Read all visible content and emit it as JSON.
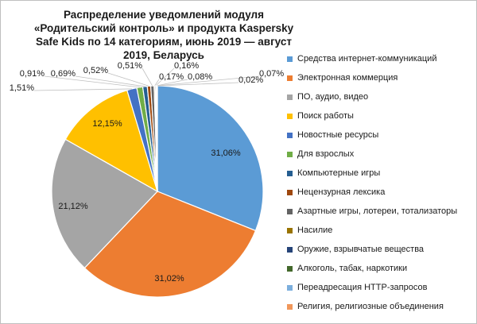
{
  "chart_data": {
    "type": "pie",
    "title": "Распределение уведомлений модуля «Родительский контроль» и продукта Kaspersky Safe Kids по 14 категориям, июнь 2019 — август 2019, Беларусь",
    "slices": [
      {
        "name": "Средства интернет-коммуникаций",
        "value": 31.06,
        "label": "31,06%",
        "color": "#5b9bd5"
      },
      {
        "name": "Электронная коммерция",
        "value": 31.02,
        "label": "31,02%",
        "color": "#ed7d31"
      },
      {
        "name": "ПО, аудио, видео",
        "value": 21.12,
        "label": "21,12%",
        "color": "#a5a5a5"
      },
      {
        "name": "Поиск работы",
        "value": 12.15,
        "label": "12,15%",
        "color": "#ffc000"
      },
      {
        "name": "Новостные ресурсы",
        "value": 1.51,
        "label": "1,51%",
        "color": "#4472c4"
      },
      {
        "name": "Для взрослых",
        "value": 0.91,
        "label": "0,91%",
        "color": "#70ad47"
      },
      {
        "name": "Компьютерные игры",
        "value": 0.69,
        "label": "0,69%",
        "color": "#255e91"
      },
      {
        "name": "Нецензурная лексика",
        "value": 0.52,
        "label": "0,52%",
        "color": "#9e480e"
      },
      {
        "name": "Азартные игры, лотереи, тотализаторы",
        "value": 0.51,
        "label": "0,51%",
        "color": "#636363"
      },
      {
        "name": "Насилие",
        "value": 0.17,
        "label": "0,17%",
        "color": "#997300"
      },
      {
        "name": "Оружие, взрывчатые вещества",
        "value": 0.16,
        "label": "0,16%",
        "color": "#264478"
      },
      {
        "name": "Алкоголь, табак, наркотики",
        "value": 0.08,
        "label": "0,08%",
        "color": "#43682b"
      },
      {
        "name": "Переадресация HTTP-запросов",
        "value": 0.07,
        "label": "0,07%",
        "color": "#7cafdd"
      },
      {
        "name": "Религия, религиозные объединения",
        "value": 0.02,
        "label": "0,02%",
        "color": "#f1975a"
      }
    ],
    "legend_position": "right"
  }
}
